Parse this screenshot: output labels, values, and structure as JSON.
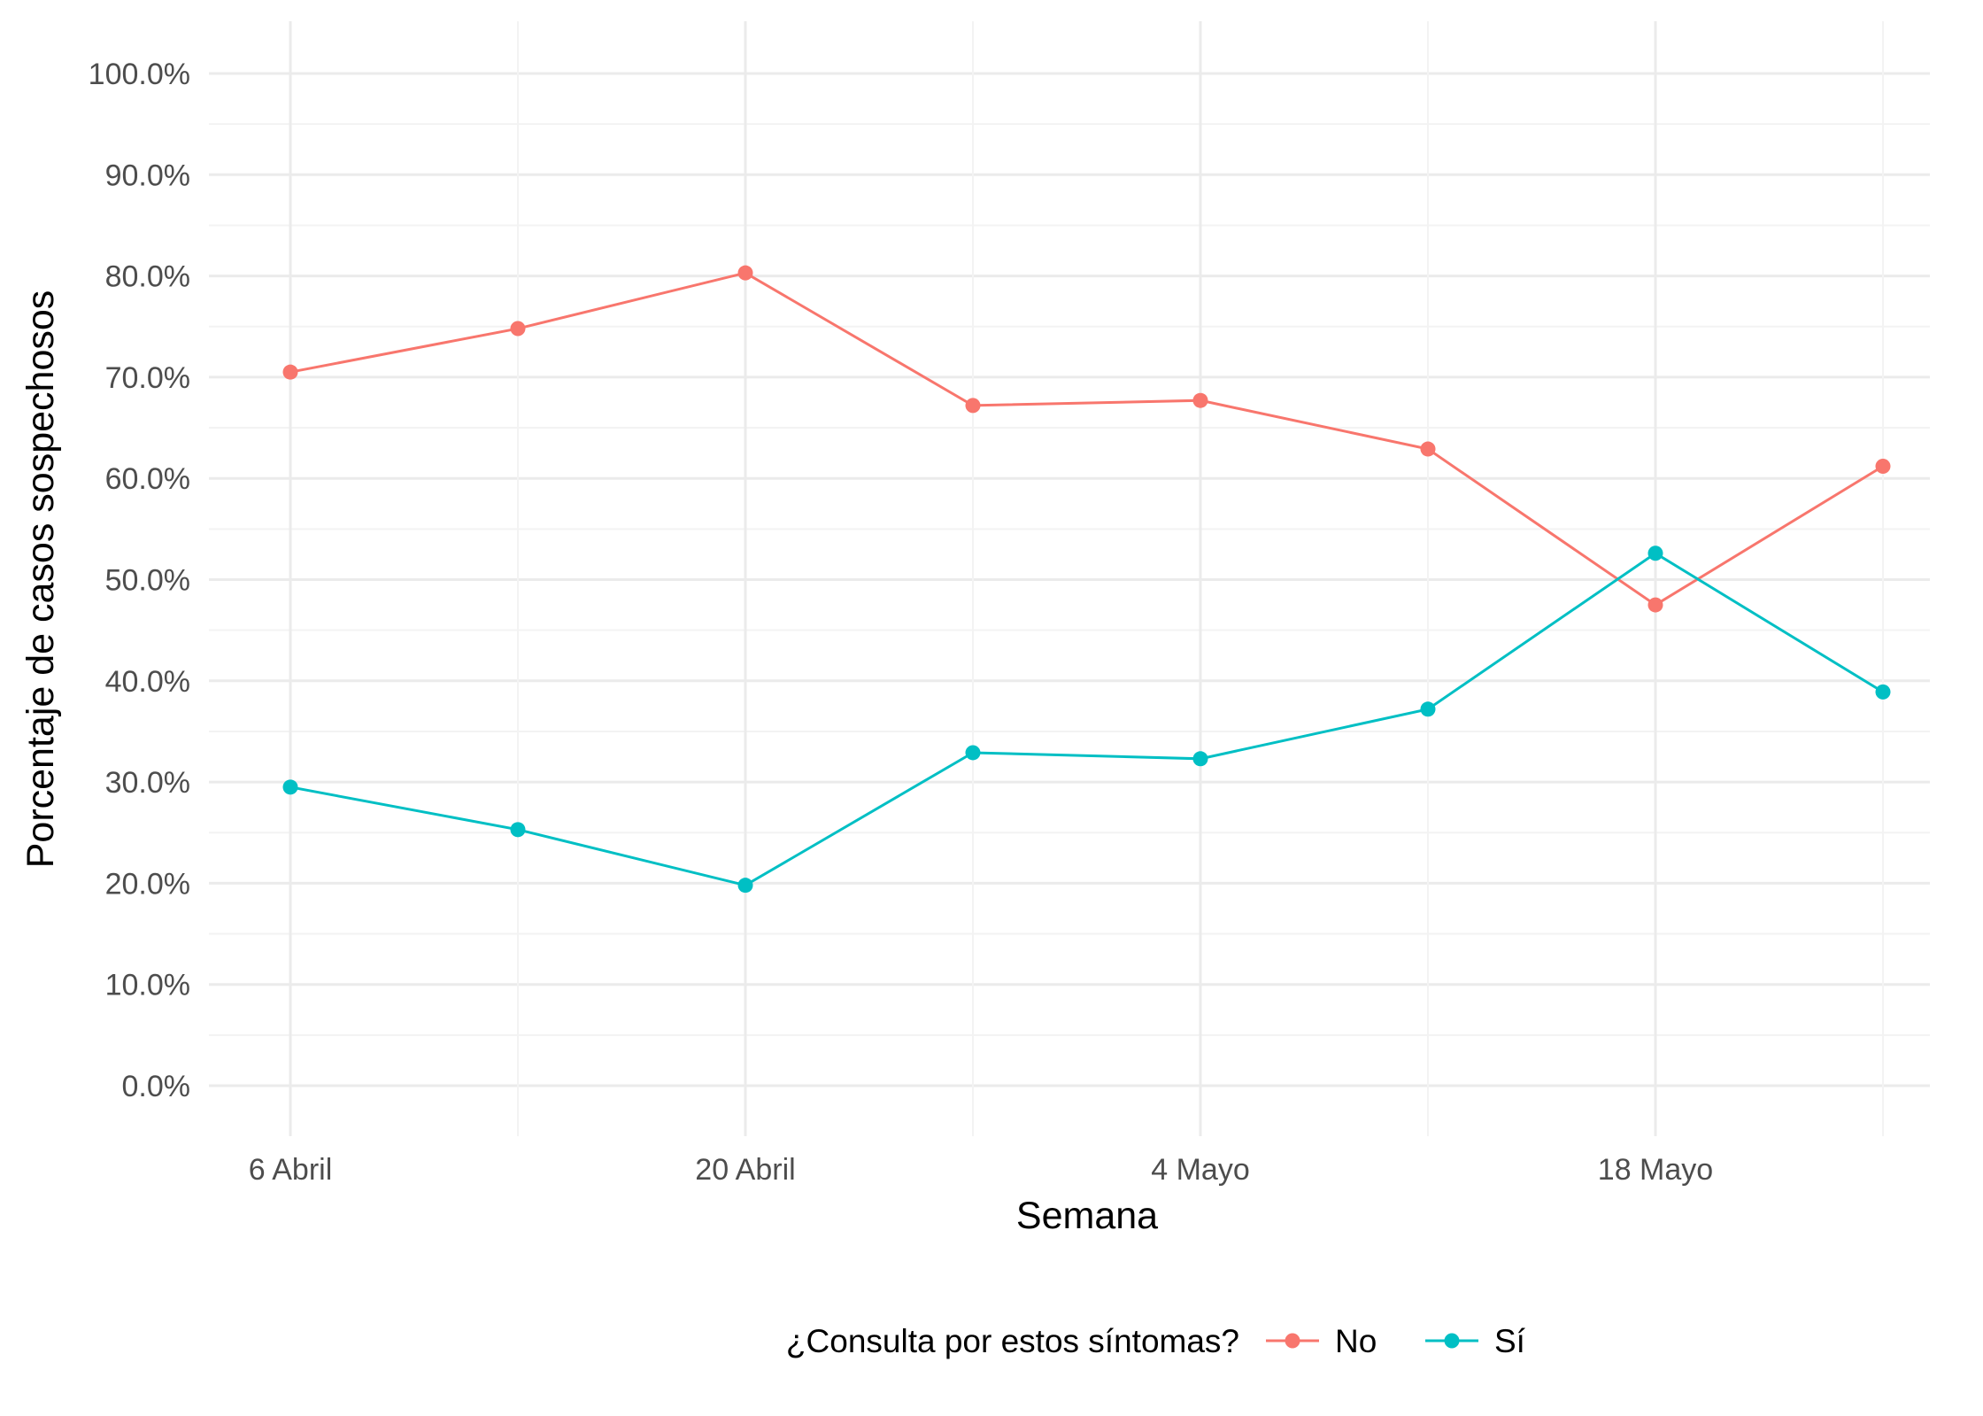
{
  "chart_data": {
    "type": "line",
    "xlabel": "Semana",
    "ylabel": "Porcentaje de casos sospechosos",
    "x": [
      "2020-04-06",
      "2020-04-13",
      "2020-04-20",
      "2020-04-27",
      "2020-05-04",
      "2020-05-11",
      "2020-05-18",
      "2020-05-25"
    ],
    "xticks": [
      {
        "x": "2020-04-06",
        "label": "6 Abril"
      },
      {
        "x": "2020-04-20",
        "label": "20 Abril"
      },
      {
        "x": "2020-05-04",
        "label": "4 Mayo"
      },
      {
        "x": "2020-05-18",
        "label": "18 Mayo"
      }
    ],
    "yticks": [
      "0.0%",
      "10.0%",
      "20.0%",
      "30.0%",
      "40.0%",
      "50.0%",
      "60.0%",
      "70.0%",
      "80.0%",
      "90.0%",
      "100.0%"
    ],
    "ylim": [
      0,
      100
    ],
    "grid": true,
    "legend": {
      "title": "¿Consulta por estos síntomas?",
      "position": "bottom"
    },
    "series": [
      {
        "name": "No",
        "color": "#F8766D",
        "values": [
          70.5,
          74.8,
          80.3,
          67.2,
          67.7,
          62.9,
          47.5,
          61.2
        ]
      },
      {
        "name": "Sí",
        "color": "#00BFC4",
        "values": [
          29.5,
          25.3,
          19.8,
          32.9,
          32.3,
          37.2,
          52.6,
          38.9
        ]
      }
    ]
  }
}
